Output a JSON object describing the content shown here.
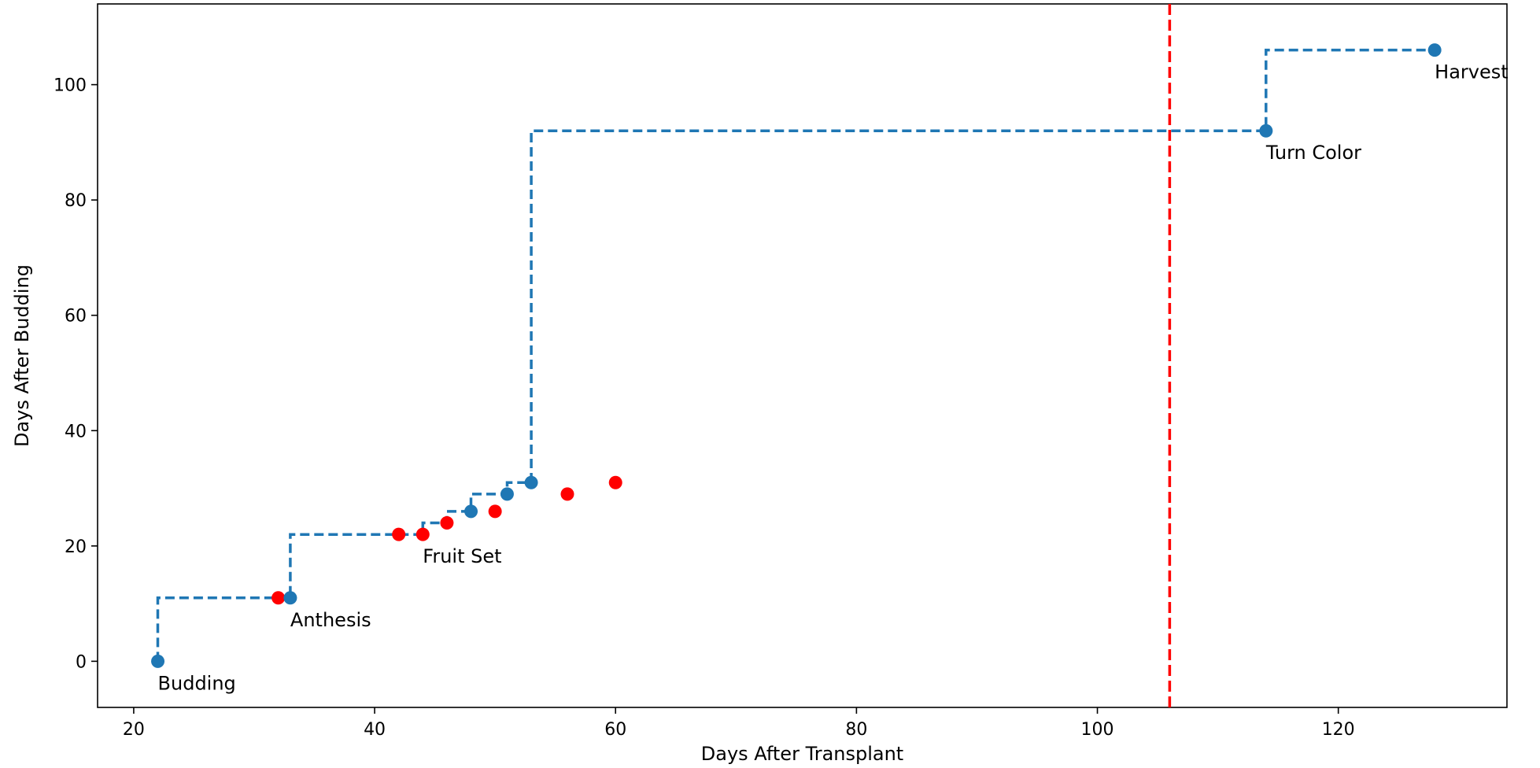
{
  "chart_data": {
    "type": "scatter",
    "title": "",
    "xlabel": "Days After Transplant",
    "ylabel": "Days After Budding",
    "xlim": [
      17,
      134
    ],
    "ylim": [
      -8,
      114
    ],
    "xticks": [
      20,
      40,
      60,
      80,
      100,
      120
    ],
    "yticks": [
      0,
      20,
      40,
      60,
      80,
      100
    ],
    "grid": false,
    "colors": {
      "stage_series": "#1f77b4",
      "red_points": "#ff0000",
      "vertical_line": "#ff0000"
    },
    "stage_step": {
      "x": [
        22,
        33,
        48,
        51,
        53,
        114,
        128
      ],
      "y": [
        0,
        11,
        26,
        29,
        31,
        92,
        106
      ]
    },
    "step_path": [
      [
        22,
        0
      ],
      [
        22,
        11
      ],
      [
        33,
        11
      ],
      [
        33,
        22
      ],
      [
        44,
        22
      ],
      [
        44,
        24
      ],
      [
        46,
        24
      ],
      [
        46,
        26
      ],
      [
        48,
        26
      ],
      [
        48,
        29
      ],
      [
        51,
        29
      ],
      [
        51,
        31
      ],
      [
        53,
        31
      ],
      [
        53,
        92
      ],
      [
        114,
        92
      ],
      [
        114,
        106
      ],
      [
        128,
        106
      ]
    ],
    "red_points": {
      "x": [
        32,
        42,
        44,
        46,
        50,
        56,
        60
      ],
      "y": [
        11,
        22,
        22,
        24,
        26,
        29,
        31
      ]
    },
    "vertical_line_x": 106,
    "annotations": [
      {
        "text": "Budding",
        "x": 22,
        "y": 0
      },
      {
        "text": "Anthesis",
        "x": 33,
        "y": 11
      },
      {
        "text": "Fruit Set",
        "x": 44,
        "y": 22
      },
      {
        "text": "Turn Color",
        "x": 114,
        "y": 92
      },
      {
        "text": "Harvest",
        "x": 128,
        "y": 106
      }
    ]
  }
}
